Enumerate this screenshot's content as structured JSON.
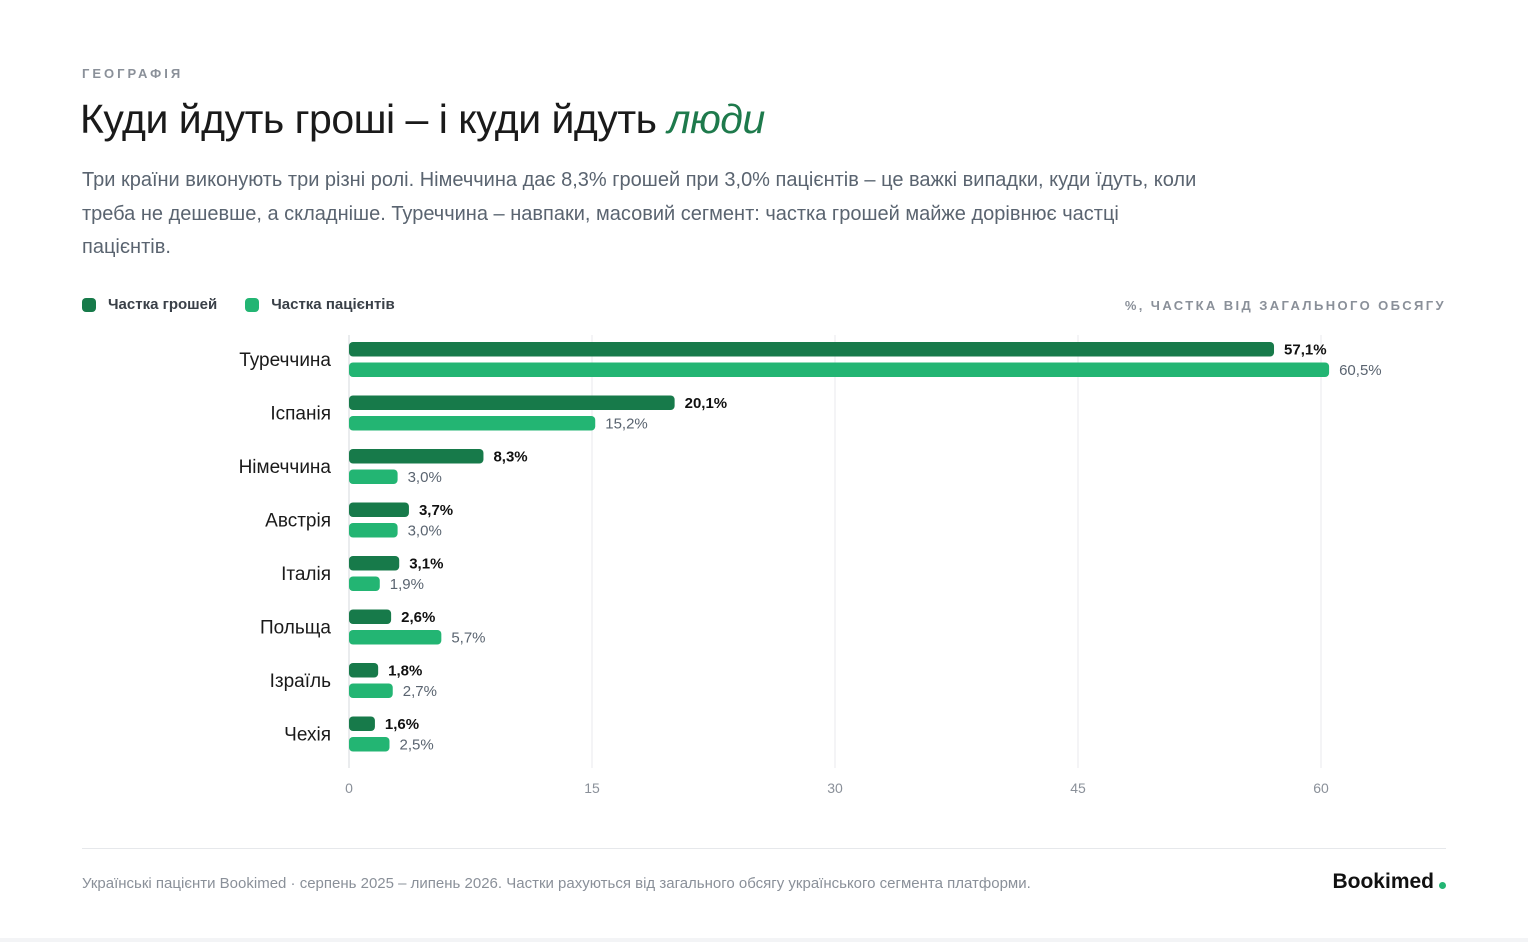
{
  "header": {
    "eyebrow": "ГЕОГРАФІЯ",
    "title_main": "Куди йдуть гроші – і куди йдуть ",
    "title_accent": "люди",
    "subtitle": "Три країни виконують три різні ролі. Німеччина дає 8,3% грошей при 3,0% пацієнтів – це важкі випадки, куди їдуть, коли треба не дешевше, а складніше. Туреччина – навпаки, масовий сегмент: частка грошей майже дорівнює частці пацієнтів."
  },
  "legend": {
    "items": [
      {
        "label": "Частка грошей",
        "color": "#177a4a"
      },
      {
        "label": "Частка пацієнтів",
        "color": "#23b573"
      }
    ],
    "unit_label": "%, ЧАСТКА ВІД ЗАГАЛЬНОГО ОБСЯГУ"
  },
  "chart_data": {
    "type": "bar",
    "orientation": "horizontal",
    "categories": [
      "Туреччина",
      "Іспанія",
      "Німеччина",
      "Австрія",
      "Італія",
      "Польща",
      "Ізраїль",
      "Чехія"
    ],
    "series": [
      {
        "name": "Частка грошей",
        "color": "#177a4a",
        "values": [
          57.1,
          20.1,
          8.3,
          3.7,
          3.1,
          2.6,
          1.8,
          1.6
        ],
        "labels": [
          "57,1%",
          "20,1%",
          "8,3%",
          "3,7%",
          "3,1%",
          "2,6%",
          "1,8%",
          "1,6%"
        ]
      },
      {
        "name": "Частка пацієнтів",
        "color": "#23b573",
        "values": [
          60.5,
          15.2,
          3.0,
          3.0,
          1.9,
          5.7,
          2.7,
          2.5
        ],
        "labels": [
          "60,5%",
          "15,2%",
          "3,0%",
          "3,0%",
          "1,9%",
          "5,7%",
          "2,7%",
          "2,5%"
        ]
      }
    ],
    "x_ticks": [
      0,
      15,
      30,
      45,
      60
    ],
    "xlim": [
      0,
      60
    ],
    "grid": true,
    "legend_position": "top-left"
  },
  "footer": {
    "note": "Українські пацієнти Bookimed · серпень 2025 – липень 2026. Частки рахуються від загального обсягу українського сегмента платформи.",
    "brand": "Bookimed",
    "brand_dot_color": "#23b573"
  }
}
